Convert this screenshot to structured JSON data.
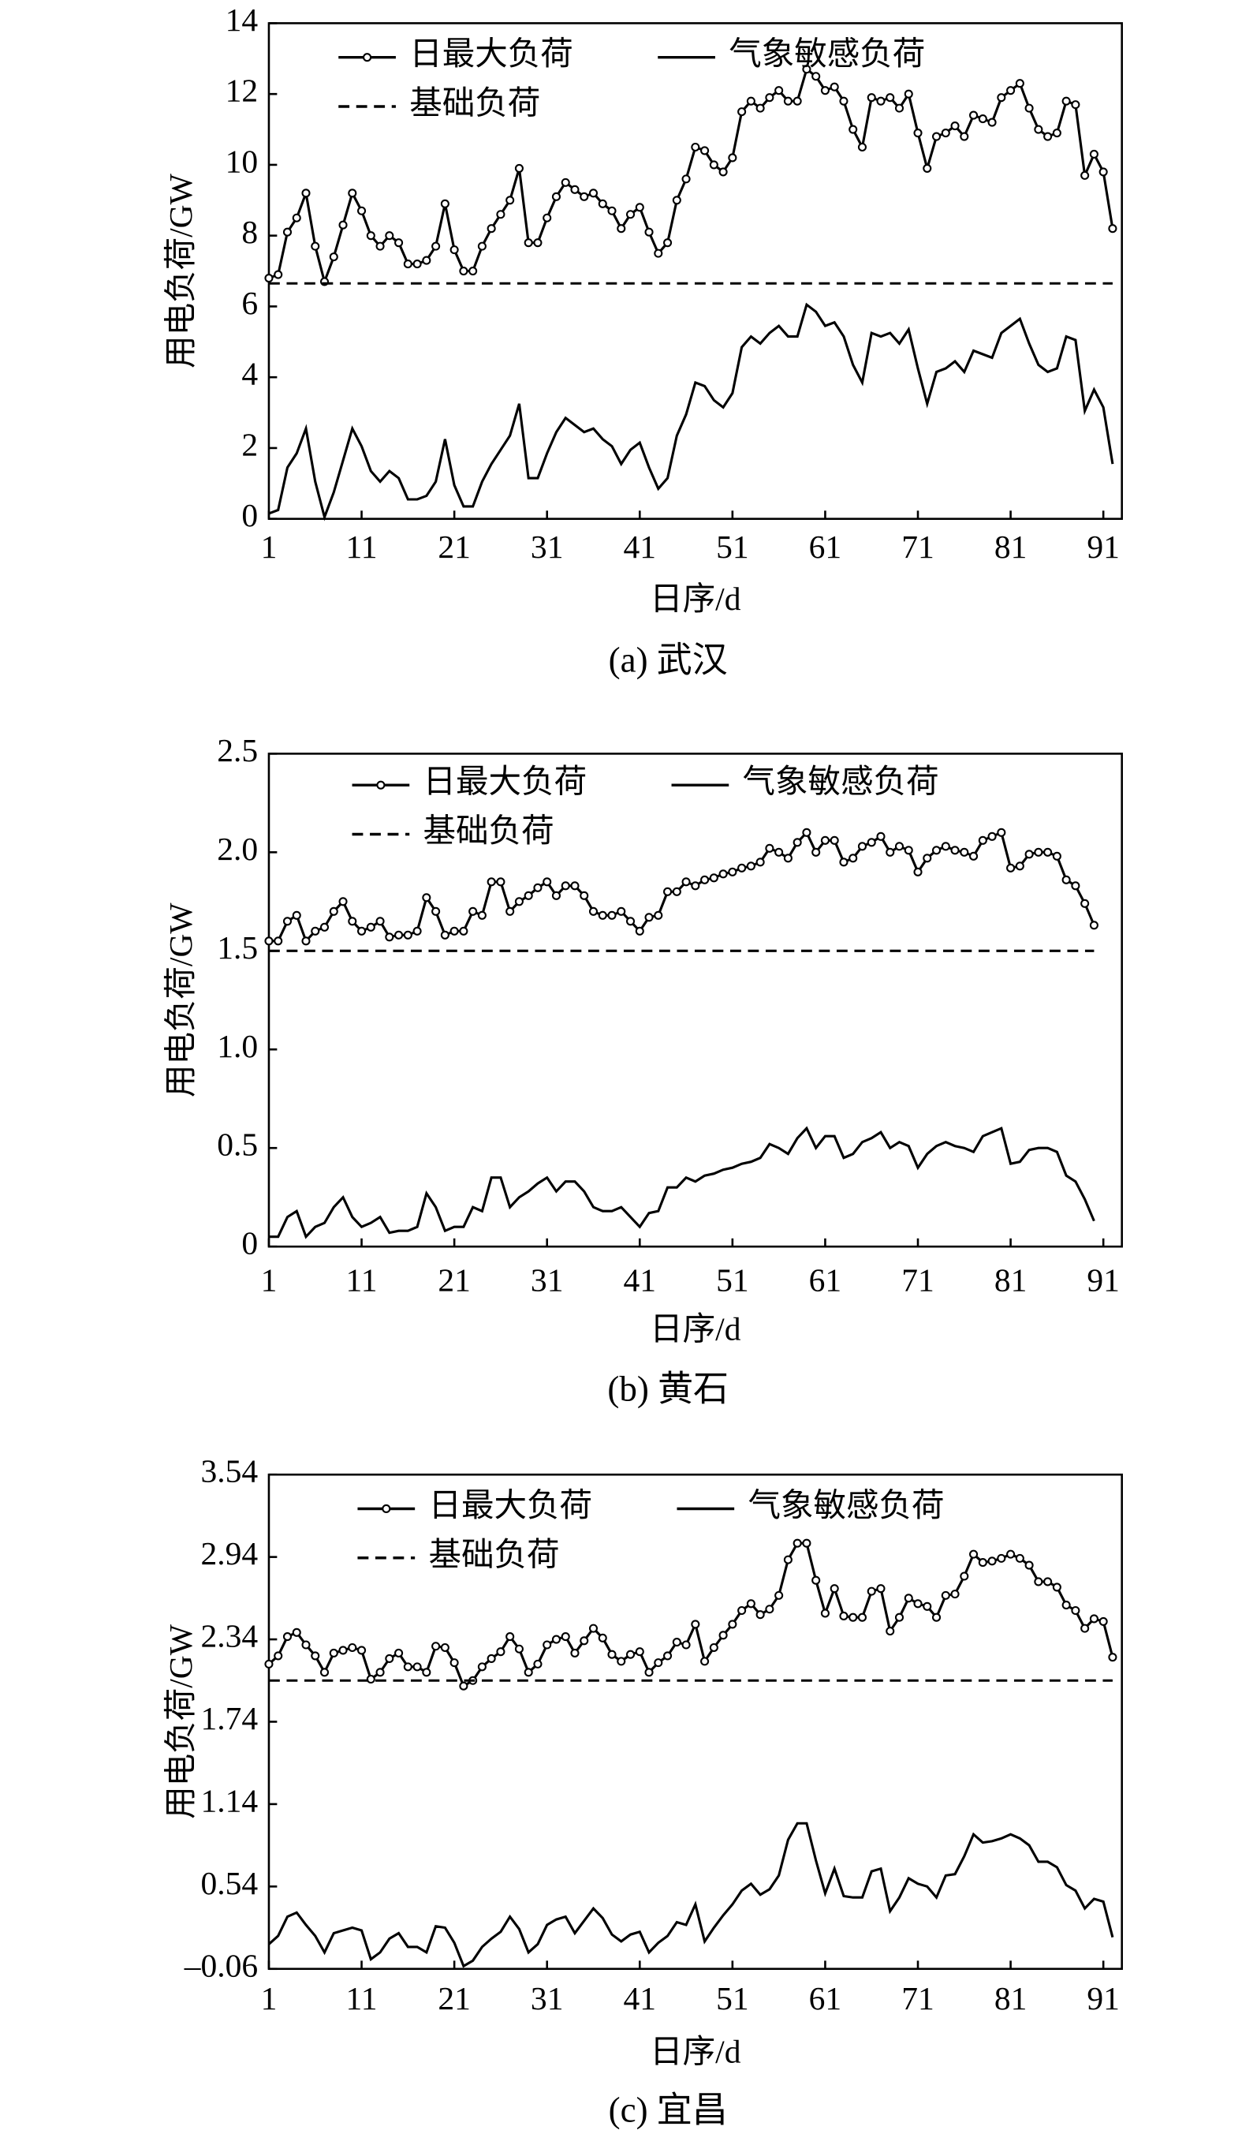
{
  "chart_data": [
    {
      "type": "line",
      "caption": "(a) 武汉",
      "xlabel": "日序/d",
      "ylabel": "用电负荷/GW",
      "xlim": [
        1,
        93
      ],
      "xticks": [
        1,
        11,
        21,
        31,
        41,
        51,
        61,
        71,
        81,
        91
      ],
      "ylim": [
        0,
        14
      ],
      "yticks": [
        0,
        2,
        4,
        6,
        8,
        10,
        12,
        14
      ],
      "x": [
        1,
        2,
        3,
        4,
        5,
        6,
        7,
        8,
        9,
        10,
        11,
        12,
        13,
        14,
        15,
        16,
        17,
        18,
        19,
        20,
        21,
        22,
        23,
        24,
        25,
        26,
        27,
        28,
        29,
        30,
        31,
        32,
        33,
        34,
        35,
        36,
        37,
        38,
        39,
        40,
        41,
        42,
        43,
        44,
        45,
        46,
        47,
        48,
        49,
        50,
        51,
        52,
        53,
        54,
        55,
        56,
        57,
        58,
        59,
        60,
        61,
        62,
        63,
        64,
        65,
        66,
        67,
        68,
        69,
        70,
        71,
        72,
        73,
        74,
        75,
        76,
        77,
        78,
        79,
        80,
        81,
        82,
        83,
        84,
        85,
        86,
        87,
        88,
        89,
        90,
        91,
        92
      ],
      "series": [
        {
          "name": "日最大负荷",
          "color": "#000000",
          "style": "line-marker",
          "values": [
            6.8,
            6.9,
            8.1,
            8.5,
            9.2,
            7.7,
            6.7,
            7.4,
            8.3,
            9.2,
            8.7,
            8.0,
            7.7,
            8.0,
            7.8,
            7.2,
            7.2,
            7.3,
            7.7,
            8.9,
            7.6,
            7.0,
            7.0,
            7.7,
            8.2,
            8.6,
            9.0,
            9.9,
            7.8,
            7.8,
            8.5,
            9.1,
            9.5,
            9.3,
            9.1,
            9.2,
            8.9,
            8.7,
            8.2,
            8.6,
            8.8,
            8.1,
            7.5,
            7.8,
            9.0,
            9.6,
            10.5,
            10.4,
            10.0,
            9.8,
            10.2,
            11.5,
            11.8,
            11.6,
            11.9,
            12.1,
            11.8,
            11.8,
            12.7,
            12.5,
            12.1,
            12.2,
            11.8,
            11.0,
            10.5,
            11.9,
            11.8,
            11.9,
            11.6,
            12.0,
            10.9,
            9.9,
            10.8,
            10.9,
            11.1,
            10.8,
            11.4,
            11.3,
            11.2,
            11.9,
            12.1,
            12.3,
            11.6,
            11.0,
            10.8,
            10.9,
            11.8,
            11.7,
            9.7,
            10.3,
            9.8,
            8.2
          ]
        },
        {
          "name": "气象敏感负荷",
          "color": "#000000",
          "style": "line",
          "values": [
            0.15,
            0.25,
            1.45,
            1.85,
            2.55,
            1.05,
            0.05,
            0.75,
            1.65,
            2.55,
            2.05,
            1.35,
            1.05,
            1.35,
            1.15,
            0.55,
            0.55,
            0.65,
            1.05,
            2.25,
            0.95,
            0.35,
            0.35,
            1.05,
            1.55,
            1.95,
            2.35,
            3.25,
            1.15,
            1.15,
            1.85,
            2.45,
            2.85,
            2.65,
            2.45,
            2.55,
            2.25,
            2.05,
            1.55,
            1.95,
            2.15,
            1.45,
            0.85,
            1.15,
            2.35,
            2.95,
            3.85,
            3.75,
            3.35,
            3.15,
            3.55,
            4.85,
            5.15,
            4.95,
            5.25,
            5.45,
            5.15,
            5.15,
            6.05,
            5.85,
            5.45,
            5.55,
            5.15,
            4.35,
            3.85,
            5.25,
            5.15,
            5.25,
            4.95,
            5.35,
            4.25,
            3.25,
            4.15,
            4.25,
            4.45,
            4.15,
            4.75,
            4.65,
            4.55,
            5.25,
            5.45,
            5.65,
            4.95,
            4.35,
            4.15,
            4.25,
            5.15,
            5.05,
            3.05,
            3.65,
            3.15,
            1.55
          ]
        },
        {
          "name": "基础负荷",
          "color": "#000000",
          "style": "dashed",
          "x": [
            1,
            92
          ],
          "values": [
            6.65,
            6.65
          ]
        }
      ]
    },
    {
      "type": "line",
      "caption": "(b) 黄石",
      "xlabel": "日序/d",
      "ylabel": "用电负荷/GW",
      "xlim": [
        1,
        93
      ],
      "xticks": [
        1,
        11,
        21,
        31,
        41,
        51,
        61,
        71,
        81,
        91
      ],
      "ylim": [
        0,
        2.5
      ],
      "yticks": [
        0,
        0.5,
        {
          "value": 1,
          "label": "1.0"
        },
        1.5,
        {
          "value": 2,
          "label": "2.0"
        },
        2.5
      ],
      "x": [
        1,
        2,
        3,
        4,
        5,
        6,
        7,
        8,
        9,
        10,
        11,
        12,
        13,
        14,
        15,
        16,
        17,
        18,
        19,
        20,
        21,
        22,
        23,
        24,
        25,
        26,
        27,
        28,
        29,
        30,
        31,
        32,
        33,
        34,
        35,
        36,
        37,
        38,
        39,
        40,
        41,
        42,
        43,
        44,
        45,
        46,
        47,
        48,
        49,
        50,
        51,
        52,
        53,
        54,
        55,
        56,
        57,
        58,
        59,
        60,
        61,
        62,
        63,
        64,
        65,
        66,
        67,
        68,
        69,
        70,
        71,
        72,
        73,
        74,
        75,
        76,
        77,
        78,
        79,
        80,
        81,
        82,
        83,
        84,
        85,
        86,
        87,
        88,
        89,
        90
      ],
      "series": [
        {
          "name": "日最大负荷",
          "color": "#000000",
          "style": "line-marker",
          "values": [
            1.55,
            1.55,
            1.65,
            1.68,
            1.55,
            1.6,
            1.62,
            1.7,
            1.75,
            1.65,
            1.6,
            1.62,
            1.65,
            1.57,
            1.58,
            1.58,
            1.6,
            1.77,
            1.7,
            1.58,
            1.6,
            1.6,
            1.7,
            1.68,
            1.85,
            1.85,
            1.7,
            1.75,
            1.78,
            1.82,
            1.85,
            1.78,
            1.83,
            1.83,
            1.78,
            1.7,
            1.68,
            1.68,
            1.7,
            1.65,
            1.6,
            1.67,
            1.68,
            1.8,
            1.8,
            1.85,
            1.83,
            1.86,
            1.87,
            1.89,
            1.9,
            1.92,
            1.93,
            1.95,
            2.02,
            2.0,
            1.97,
            2.05,
            2.1,
            2.0,
            2.06,
            2.06,
            1.95,
            1.97,
            2.03,
            2.05,
            2.08,
            2.0,
            2.03,
            2.01,
            1.9,
            1.97,
            2.01,
            2.03,
            2.01,
            2.0,
            1.98,
            2.06,
            2.08,
            2.1,
            1.92,
            1.93,
            1.99,
            2.0,
            2.0,
            1.98,
            1.86,
            1.83,
            1.74,
            1.63
          ]
        },
        {
          "name": "气象敏感负荷",
          "color": "#000000",
          "style": "line",
          "values": [
            0.05,
            0.05,
            0.15,
            0.18,
            0.05,
            0.1,
            0.12,
            0.2,
            0.25,
            0.15,
            0.1,
            0.12,
            0.15,
            0.07,
            0.08,
            0.08,
            0.1,
            0.27,
            0.2,
            0.08,
            0.1,
            0.1,
            0.2,
            0.18,
            0.35,
            0.35,
            0.2,
            0.25,
            0.28,
            0.32,
            0.35,
            0.28,
            0.33,
            0.33,
            0.28,
            0.2,
            0.18,
            0.18,
            0.2,
            0.15,
            0.1,
            0.17,
            0.18,
            0.3,
            0.3,
            0.35,
            0.33,
            0.36,
            0.37,
            0.39,
            0.4,
            0.42,
            0.43,
            0.45,
            0.52,
            0.5,
            0.47,
            0.55,
            0.6,
            0.5,
            0.56,
            0.56,
            0.45,
            0.47,
            0.53,
            0.55,
            0.58,
            0.5,
            0.53,
            0.51,
            0.4,
            0.47,
            0.51,
            0.53,
            0.51,
            0.5,
            0.48,
            0.56,
            0.58,
            0.6,
            0.42,
            0.43,
            0.49,
            0.5,
            0.5,
            0.48,
            0.36,
            0.33,
            0.24,
            0.13
          ]
        },
        {
          "name": "基础负荷",
          "color": "#000000",
          "style": "dashed",
          "x": [
            1,
            90
          ],
          "values": [
            1.5,
            1.5
          ]
        }
      ]
    },
    {
      "type": "line",
      "caption": "(c) 宜昌",
      "xlabel": "日序/d",
      "ylabel": "用电负荷/GW",
      "xlim": [
        1,
        93
      ],
      "xticks": [
        1,
        11,
        21,
        31,
        41,
        51,
        61,
        71,
        81,
        91
      ],
      "ylim": [
        -0.06,
        3.54
      ],
      "yticks": [
        {
          "value": -0.06,
          "label": "–0.06"
        },
        0.54,
        1.14,
        1.74,
        2.34,
        2.94,
        3.54
      ],
      "x": [
        1,
        2,
        3,
        4,
        5,
        6,
        7,
        8,
        9,
        10,
        11,
        12,
        13,
        14,
        15,
        16,
        17,
        18,
        19,
        20,
        21,
        22,
        23,
        24,
        25,
        26,
        27,
        28,
        29,
        30,
        31,
        32,
        33,
        34,
        35,
        36,
        37,
        38,
        39,
        40,
        41,
        42,
        43,
        44,
        45,
        46,
        47,
        48,
        49,
        50,
        51,
        52,
        53,
        54,
        55,
        56,
        57,
        58,
        59,
        60,
        61,
        62,
        63,
        64,
        65,
        66,
        67,
        68,
        69,
        70,
        71,
        72,
        73,
        74,
        75,
        76,
        77,
        78,
        79,
        80,
        81,
        82,
        83,
        84,
        85,
        86,
        87,
        88,
        89,
        90,
        91,
        92
      ],
      "series": [
        {
          "name": "日最大负荷",
          "color": "#000000",
          "style": "line-marker",
          "values": [
            2.16,
            2.22,
            2.36,
            2.39,
            2.3,
            2.22,
            2.1,
            2.24,
            2.26,
            2.28,
            2.26,
            2.05,
            2.1,
            2.2,
            2.24,
            2.14,
            2.14,
            2.1,
            2.29,
            2.28,
            2.17,
            2.0,
            2.04,
            2.14,
            2.2,
            2.25,
            2.36,
            2.27,
            2.1,
            2.16,
            2.3,
            2.34,
            2.36,
            2.24,
            2.33,
            2.42,
            2.35,
            2.23,
            2.18,
            2.23,
            2.25,
            2.1,
            2.17,
            2.22,
            2.32,
            2.3,
            2.45,
            2.18,
            2.28,
            2.37,
            2.45,
            2.55,
            2.6,
            2.52,
            2.56,
            2.66,
            2.92,
            3.04,
            3.04,
            2.77,
            2.53,
            2.71,
            2.51,
            2.5,
            2.5,
            2.69,
            2.71,
            2.4,
            2.5,
            2.64,
            2.6,
            2.58,
            2.5,
            2.66,
            2.67,
            2.8,
            2.96,
            2.9,
            2.91,
            2.93,
            2.96,
            2.93,
            2.88,
            2.76,
            2.76,
            2.72,
            2.59,
            2.55,
            2.42,
            2.49,
            2.47,
            2.21
          ]
        },
        {
          "name": "气象敏感负荷",
          "color": "#000000",
          "style": "line",
          "values": [
            0.12,
            0.18,
            0.32,
            0.35,
            0.26,
            0.18,
            0.06,
            0.2,
            0.22,
            0.24,
            0.22,
            0.01,
            0.06,
            0.16,
            0.2,
            0.1,
            0.1,
            0.06,
            0.25,
            0.24,
            0.13,
            -0.04,
            0,
            0.1,
            0.16,
            0.21,
            0.32,
            0.23,
            0.06,
            0.12,
            0.26,
            0.3,
            0.32,
            0.2,
            0.29,
            0.38,
            0.31,
            0.19,
            0.14,
            0.19,
            0.21,
            0.06,
            0.13,
            0.18,
            0.28,
            0.26,
            0.41,
            0.14,
            0.24,
            0.33,
            0.41,
            0.51,
            0.56,
            0.48,
            0.52,
            0.62,
            0.88,
            1.0,
            1.0,
            0.73,
            0.49,
            0.67,
            0.47,
            0.46,
            0.46,
            0.65,
            0.67,
            0.36,
            0.46,
            0.6,
            0.56,
            0.54,
            0.46,
            0.62,
            0.63,
            0.76,
            0.92,
            0.86,
            0.87,
            0.89,
            0.92,
            0.89,
            0.84,
            0.72,
            0.72,
            0.68,
            0.55,
            0.51,
            0.38,
            0.45,
            0.43,
            0.17
          ]
        },
        {
          "name": "基础负荷",
          "color": "#000000",
          "style": "dashed",
          "x": [
            1,
            92
          ],
          "values": [
            2.04,
            2.04
          ]
        }
      ]
    }
  ]
}
